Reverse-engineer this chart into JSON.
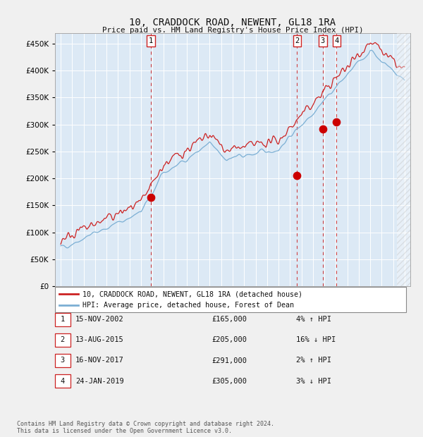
{
  "title": "10, CRADDOCK ROAD, NEWENT, GL18 1RA",
  "subtitle": "Price paid vs. HM Land Registry's House Price Index (HPI)",
  "legend_line1": "10, CRADDOCK ROAD, NEWENT, GL18 1RA (detached house)",
  "legend_line2": "HPI: Average price, detached house, Forest of Dean",
  "footer1": "Contains HM Land Registry data © Crown copyright and database right 2024.",
  "footer2": "This data is licensed under the Open Government Licence v3.0.",
  "transactions": [
    {
      "num": 1,
      "date": "15-NOV-2002",
      "price": 165000,
      "pct": "4%",
      "dir": "↑",
      "rel": "HPI",
      "date_dec": 2002.87
    },
    {
      "num": 2,
      "date": "13-AUG-2015",
      "price": 205000,
      "pct": "16%",
      "dir": "↓",
      "rel": "HPI",
      "date_dec": 2015.62
    },
    {
      "num": 3,
      "date": "16-NOV-2017",
      "price": 291000,
      "pct": "2%",
      "dir": "↑",
      "rel": "HPI",
      "date_dec": 2017.87
    },
    {
      "num": 4,
      "date": "24-JAN-2019",
      "price": 305000,
      "pct": "3%",
      "dir": "↓",
      "rel": "HPI",
      "date_dec": 2019.07
    }
  ],
  "hpi_color": "#7bafd4",
  "price_color": "#cc2222",
  "dot_color": "#cc0000",
  "vline_color": "#cc2222",
  "bg_color": "#dce9f5",
  "grid_color": "#ffffff",
  "fig_bg": "#f0f0f0",
  "ylim": [
    0,
    470000
  ],
  "xlim_start": 1994.5,
  "xlim_end": 2025.5,
  "yticks": [
    0,
    50000,
    100000,
    150000,
    200000,
    250000,
    300000,
    350000,
    400000,
    450000
  ],
  "hatch_start": 2024.33,
  "hatch_end": 2025.5
}
